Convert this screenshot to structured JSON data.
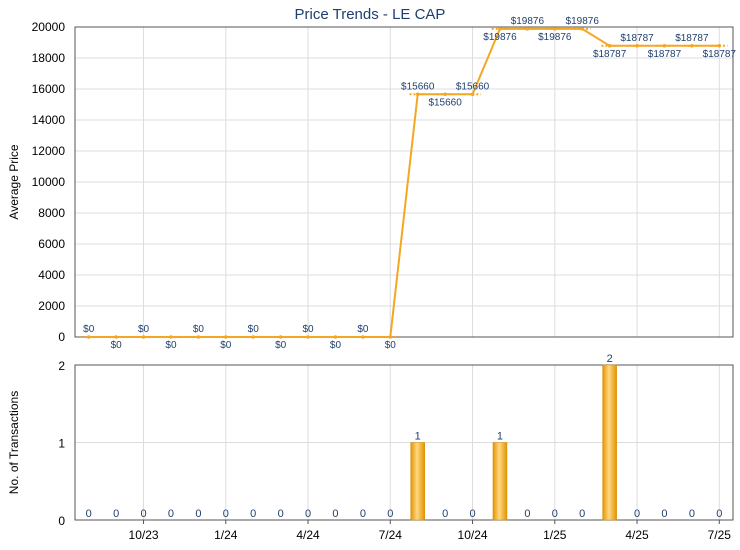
{
  "title": "Price Trends - LE CAP",
  "colors": {
    "line": "#f5a623",
    "bar": "#f5a623",
    "grid": "#dddddd",
    "axis": "#555555",
    "label": "#1f3f6e",
    "text": "#000000"
  },
  "chart_data": [
    {
      "type": "line",
      "ylabel": "Average Price",
      "ylim": [
        0,
        20000
      ],
      "yticks": [
        0,
        2000,
        4000,
        6000,
        8000,
        10000,
        12000,
        14000,
        16000,
        18000,
        20000
      ],
      "grid": true,
      "series": [
        {
          "values": [
            0,
            0,
            0,
            0,
            0,
            0,
            0,
            0,
            0,
            0,
            0,
            0,
            15660,
            15660,
            15660,
            19876,
            19876,
            19876,
            19876,
            18787,
            18787,
            18787,
            18787,
            18787
          ],
          "labels": [
            "$0",
            "$0",
            "$0",
            "$0",
            "$0",
            "$0",
            "$0",
            "$0",
            "$0",
            "$0",
            "$0",
            "$0",
            "$15660",
            "$15660",
            "$15660",
            "$19876",
            "$19876",
            "$19876",
            "$19876",
            "$18787",
            "$18787",
            "$18787",
            "$18787",
            "$18787"
          ]
        }
      ]
    },
    {
      "type": "bar",
      "ylabel": "No. of Transactions",
      "ylim": [
        0,
        2
      ],
      "yticks": [
        0,
        1,
        2
      ],
      "grid": true,
      "values": [
        0,
        0,
        0,
        0,
        0,
        0,
        0,
        0,
        0,
        0,
        0,
        0,
        1,
        0,
        0,
        1,
        0,
        0,
        0,
        2,
        0,
        0,
        0,
        0
      ],
      "x_tick_labels": [
        "10/23",
        "1/24",
        "4/24",
        "7/24",
        "10/24",
        "1/25",
        "4/25",
        "7/25"
      ]
    }
  ]
}
